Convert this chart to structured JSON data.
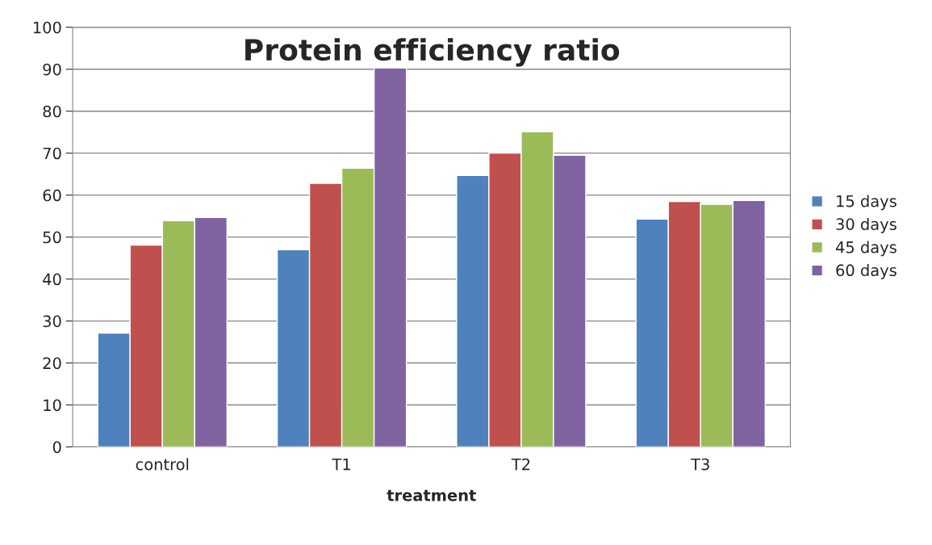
{
  "chart_data": {
    "type": "bar",
    "title": "Protein efficiency ratio",
    "xlabel": "treatment",
    "categories": [
      "control",
      "T1",
      "T2",
      "T3"
    ],
    "series": [
      {
        "name": "15 days",
        "color": "#4f81bd",
        "values": [
          27.1,
          47.0,
          64.7,
          54.3
        ]
      },
      {
        "name": "30 days",
        "color": "#c0504d",
        "values": [
          48.1,
          62.8,
          70.0,
          58.5
        ]
      },
      {
        "name": "45 days",
        "color": "#9bbb59",
        "values": [
          53.9,
          66.4,
          75.1,
          57.8
        ]
      },
      {
        "name": "60 days",
        "color": "#8064a2",
        "values": [
          54.7,
          90.3,
          69.5,
          58.7
        ]
      }
    ],
    "ylim": [
      0,
      100
    ],
    "yticks": [
      0,
      10,
      20,
      30,
      40,
      50,
      60,
      70,
      80,
      90,
      100
    ],
    "grid": "y",
    "legend": "right"
  }
}
